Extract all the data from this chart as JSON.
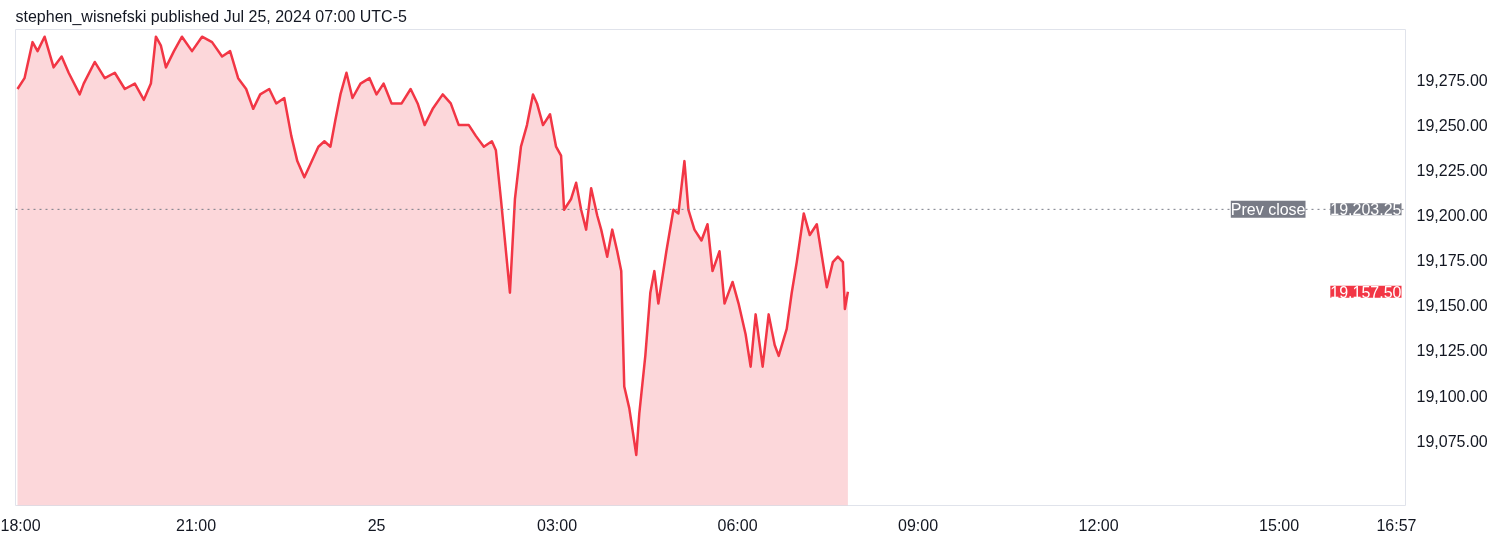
{
  "chart_data": {
    "type": "area",
    "annotations": [
      "stephen_wisnefski published Jul 25, 2024 07:00 UTC-5",
      "19,203.25",
      "19,157.50"
    ],
    "x": [
      "2024-07-24T18:02",
      "2024-07-24T18:09",
      "2024-07-24T18:17",
      "2024-07-24T18:22",
      "2024-07-24T18:29",
      "2024-07-24T18:38",
      "2024-07-24T18:46",
      "2024-07-24T18:53",
      "2024-07-24T19:04",
      "2024-07-24T19:08",
      "2024-07-24T19:19",
      "2024-07-24T19:29",
      "2024-07-24T19:39",
      "2024-07-24T19:49",
      "2024-07-24T19:59",
      "2024-07-24T20:08",
      "2024-07-24T20:15",
      "2024-07-24T20:20",
      "2024-07-24T20:25",
      "2024-07-24T20:30",
      "2024-07-24T20:38",
      "2024-07-24T20:46",
      "2024-07-24T20:56",
      "2024-07-24T21:06",
      "2024-07-24T21:16",
      "2024-07-24T21:26",
      "2024-07-24T21:34",
      "2024-07-24T21:42",
      "2024-07-24T21:50",
      "2024-07-24T21:57",
      "2024-07-24T22:04",
      "2024-07-24T22:13",
      "2024-07-24T22:20",
      "2024-07-24T22:28",
      "2024-07-24T22:35",
      "2024-07-24T22:41",
      "2024-07-24T22:48",
      "2024-07-24T22:53",
      "2024-07-24T23:02",
      "2024-07-24T23:08",
      "2024-07-24T23:14",
      "2024-07-24T23:19",
      "2024-07-24T23:24",
      "2024-07-24T23:30",
      "2024-07-24T23:36",
      "2024-07-24T23:44",
      "2024-07-24T23:53",
      "2024-07-25T00:00",
      "2024-07-25T00:07",
      "2024-07-25T00:15",
      "2024-07-25T00:25",
      "2024-07-25T00:34",
      "2024-07-25T00:41",
      "2024-07-25T00:48",
      "2024-07-25T00:56",
      "2024-07-25T01:06",
      "2024-07-25T01:14",
      "2024-07-25T01:22",
      "2024-07-25T01:32",
      "2024-07-25T01:39",
      "2024-07-25T01:47",
      "2024-07-25T01:55",
      "2024-07-25T01:59",
      "2024-07-25T02:04",
      "2024-07-25T02:08",
      "2024-07-25T02:13",
      "2024-07-25T02:18",
      "2024-07-25T02:24",
      "2024-07-25T02:30",
      "2024-07-25T02:36",
      "2024-07-25T02:40",
      "2024-07-25T02:46",
      "2024-07-25T02:53",
      "2024-07-25T02:59",
      "2024-07-25T03:04",
      "2024-07-25T03:07",
      "2024-07-25T03:14",
      "2024-07-25T03:19",
      "2024-07-25T03:24",
      "2024-07-25T03:29",
      "2024-07-25T03:34",
      "2024-07-25T03:40",
      "2024-07-25T03:44",
      "2024-07-25T03:50",
      "2024-07-25T03:55",
      "2024-07-25T04:00",
      "2024-07-25T04:04",
      "2024-07-25T04:07",
      "2024-07-25T04:12",
      "2024-07-25T04:19",
      "2024-07-25T04:22",
      "2024-07-25T04:28",
      "2024-07-25T04:33",
      "2024-07-25T04:37",
      "2024-07-25T04:41",
      "2024-07-25T04:49",
      "2024-07-25T04:56",
      "2024-07-25T05:01",
      "2024-07-25T05:07",
      "2024-07-25T05:11",
      "2024-07-25T05:17",
      "2024-07-25T05:24",
      "2024-07-25T05:30",
      "2024-07-25T05:35",
      "2024-07-25T05:42",
      "2024-07-25T05:47",
      "2024-07-25T05:55",
      "2024-07-25T06:01",
      "2024-07-25T06:08",
      "2024-07-25T06:13",
      "2024-07-25T06:18",
      "2024-07-25T06:25",
      "2024-07-25T06:31",
      "2024-07-25T06:37",
      "2024-07-25T06:41",
      "2024-07-25T06:49",
      "2024-07-25T06:54",
      "2024-07-25T06:59",
      "2024-07-25T07:06",
      "2024-07-25T07:12",
      "2024-07-25T07:19",
      "2024-07-25T07:25",
      "2024-07-25T07:29",
      "2024-07-25T07:35",
      "2024-07-25T07:40",
      "2024-07-25T07:45",
      "2024-07-25T07:47",
      "2024-07-25T07:50"
    ],
    "series": [
      {
        "color": "#f23645",
        "values": [
          19270,
          19276,
          19296,
          19291,
          19299,
          19282,
          19288,
          19279,
          19267,
          19273,
          19285,
          19276,
          19279,
          19270,
          19273,
          19264,
          19273,
          19299,
          19294,
          19282,
          19291,
          19299,
          19291,
          19299,
          19296,
          19288,
          19291,
          19276,
          19270,
          19259,
          19267,
          19270,
          19262,
          19265,
          19244,
          19230,
          19221,
          19227,
          19238,
          19241,
          19238,
          19253,
          19267,
          19279,
          19265,
          19273,
          19276,
          19267,
          19273,
          19262,
          19262,
          19270,
          19262,
          19250,
          19259,
          19267,
          19262,
          19250,
          19250,
          19244,
          19238,
          19241,
          19236,
          19209,
          19186,
          19157,
          19209,
          19238,
          19250,
          19267,
          19262,
          19250,
          19256,
          19238,
          19233,
          19203,
          19209,
          19218,
          19203,
          19192,
          19215,
          19200,
          19192,
          19177,
          19192,
          19180,
          19169,
          19105,
          19093,
          19067,
          19090,
          19122,
          19157,
          19169,
          19151,
          19180,
          19203,
          19201,
          19230,
          19203,
          19192,
          19186,
          19195,
          19169,
          19180,
          19151,
          19163,
          19151,
          19134,
          19116,
          19145,
          19116,
          19145,
          19128,
          19122,
          19137,
          19157,
          19174,
          19201,
          19189,
          19195,
          19174,
          19160,
          19174,
          19177,
          19174,
          19148,
          19157.5
        ]
      }
    ],
    "xlim": [
      "2024-07-24T18:00",
      "2024-07-25T17:06"
    ],
    "ylim": [
      19039,
      19303
    ],
    "xticks": [
      {
        "value": "2024-07-24T18:00",
        "label": "18:00"
      },
      {
        "value": "2024-07-24T21:00",
        "label": "21:00"
      },
      {
        "value": "2024-07-25T00:00",
        "label": "25"
      },
      {
        "value": "2024-07-25T03:00",
        "label": "03:00"
      },
      {
        "value": "2024-07-25T06:00",
        "label": "06:00"
      },
      {
        "value": "2024-07-25T09:00",
        "label": "09:00"
      },
      {
        "value": "2024-07-25T12:00",
        "label": "12:00"
      },
      {
        "value": "2024-07-25T15:00",
        "label": "15:00"
      },
      {
        "value": "2024-07-25T16:57",
        "label": "16:57"
      }
    ],
    "yticks": [
      {
        "value": 19075,
        "label": "19,075.00"
      },
      {
        "value": 19100,
        "label": "19,100.00"
      },
      {
        "value": 19125,
        "label": "19,125.00"
      },
      {
        "value": 19150,
        "label": "19,150.00"
      },
      {
        "value": 19175,
        "label": "19,175.00"
      },
      {
        "value": 19200,
        "label": "19,200.00"
      },
      {
        "value": 19225,
        "label": "19,225.00"
      },
      {
        "value": 19250,
        "label": "19,250.00"
      },
      {
        "value": 19275,
        "label": "19,275.00"
      }
    ],
    "ref_lines": [
      {
        "axis": "y",
        "value": 19203.25,
        "label": "Prev close",
        "color": "#787b86",
        "line_style": "dotted"
      }
    ],
    "grid": false
  }
}
